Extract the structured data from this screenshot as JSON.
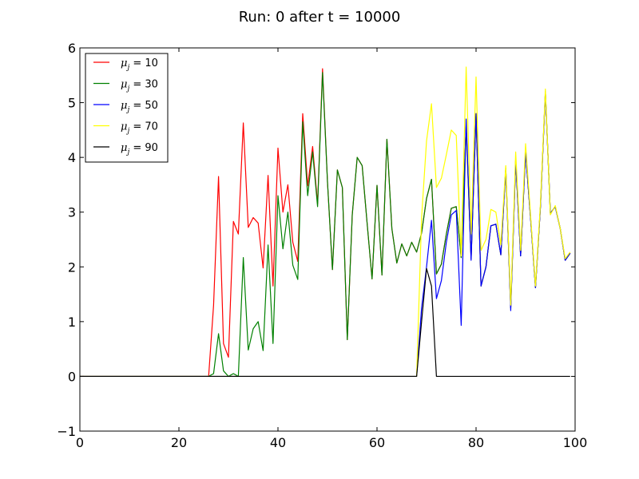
{
  "chart_data": {
    "type": "line",
    "title": "Run: 0 after t = 10000",
    "xlabel": "",
    "ylabel": "",
    "xlim": [
      0,
      100
    ],
    "ylim": [
      -1,
      6
    ],
    "xticks": [
      "0",
      "20",
      "40",
      "60",
      "80",
      "100"
    ],
    "yticks": [
      "−1",
      "0",
      "1",
      "2",
      "3",
      "4",
      "5",
      "6"
    ],
    "legend_placement": "top-left",
    "grid": false,
    "series": [
      {
        "name": "μ_j = 10",
        "legend_label": "μ",
        "legend_sub": "j",
        "legend_value": " = 10",
        "color": "#ff0000",
        "x": [
          0,
          1,
          2,
          3,
          4,
          5,
          6,
          7,
          8,
          9,
          10,
          11,
          12,
          13,
          14,
          15,
          16,
          17,
          18,
          19,
          20,
          21,
          22,
          23,
          24,
          25,
          26,
          27,
          28,
          29,
          30,
          31,
          32,
          33,
          34,
          35,
          36,
          37,
          38,
          39,
          40,
          41,
          42,
          43,
          44,
          45,
          46,
          47,
          48,
          49,
          50,
          51,
          52,
          53,
          54,
          55,
          56,
          57,
          58,
          59,
          60,
          61,
          62,
          63,
          64,
          65,
          66,
          67,
          68,
          69,
          70,
          71,
          72,
          73,
          74,
          75,
          76,
          77,
          78,
          79,
          80,
          81,
          82,
          83,
          84,
          85,
          86,
          87,
          88,
          89,
          90,
          91,
          92,
          93,
          94,
          95,
          96,
          97,
          98,
          99
        ],
        "y": [
          0,
          0,
          0,
          0,
          0,
          0,
          0,
          0,
          0,
          0,
          0,
          0,
          0,
          0,
          0,
          0,
          0,
          0,
          0,
          0,
          0,
          0,
          0,
          0,
          0,
          0,
          0,
          1.3,
          3.65,
          0.6,
          0.35,
          2.83,
          2.6,
          4.63,
          2.72,
          2.9,
          2.8,
          1.98,
          3.67,
          1.65,
          4.17,
          3.0,
          3.5,
          2.45,
          2.1,
          4.8,
          3.48,
          4.2,
          3.15,
          5.62,
          3.55,
          1.95,
          3.77,
          3.45,
          0.67,
          2.95,
          4.0,
          3.85,
          2.8,
          1.78,
          3.49,
          1.85,
          4.33,
          2.7,
          2.07,
          2.42,
          2.2,
          2.45,
          2.27,
          2.62,
          3.25,
          3.6,
          1.87,
          2.05,
          2.6,
          3.07,
          3.1,
          2.17,
          4.58,
          2.15,
          4.8,
          1.65,
          2.0,
          2.75,
          2.78,
          2.22,
          3.8,
          1.25,
          3.95,
          2.2,
          4.1,
          2.9,
          1.62,
          3.1,
          5.2,
          2.98,
          3.1,
          2.7,
          2.12,
          2.25
        ]
      },
      {
        "name": "μ_j = 30",
        "legend_label": "μ",
        "legend_sub": "j",
        "legend_value": " = 30",
        "color": "#008000",
        "x": [
          0,
          1,
          2,
          3,
          4,
          5,
          6,
          7,
          8,
          9,
          10,
          11,
          12,
          13,
          14,
          15,
          16,
          17,
          18,
          19,
          20,
          21,
          22,
          23,
          24,
          25,
          26,
          27,
          28,
          29,
          30,
          31,
          32,
          33,
          34,
          35,
          36,
          37,
          38,
          39,
          40,
          41,
          42,
          43,
          44,
          45,
          46,
          47,
          48,
          49,
          50,
          51,
          52,
          53,
          54,
          55,
          56,
          57,
          58,
          59,
          60,
          61,
          62,
          63,
          64,
          65,
          66,
          67,
          68,
          69,
          70,
          71,
          72,
          73,
          74,
          75,
          76,
          77,
          78,
          79,
          80,
          81,
          82,
          83,
          84,
          85,
          86,
          87,
          88,
          89,
          90,
          91,
          92,
          93,
          94,
          95,
          96,
          97,
          98,
          99
        ],
        "y": [
          0,
          0,
          0,
          0,
          0,
          0,
          0,
          0,
          0,
          0,
          0,
          0,
          0,
          0,
          0,
          0,
          0,
          0,
          0,
          0,
          0,
          0,
          0,
          0,
          0,
          0,
          0,
          0.05,
          0.78,
          0.1,
          0,
          0.05,
          0,
          2.17,
          0.48,
          0.87,
          1.0,
          0.47,
          2.4,
          0.6,
          3.3,
          2.33,
          3.0,
          2.03,
          1.77,
          4.65,
          3.3,
          4.1,
          3.1,
          5.55,
          3.55,
          1.95,
          3.77,
          3.45,
          0.67,
          2.95,
          4.0,
          3.85,
          2.8,
          1.78,
          3.49,
          1.85,
          4.33,
          2.7,
          2.07,
          2.42,
          2.2,
          2.45,
          2.27,
          2.62,
          3.25,
          3.6,
          1.87,
          2.05,
          2.6,
          3.07,
          3.1,
          2.17,
          4.58,
          2.15,
          4.8,
          1.65,
          2.0,
          2.75,
          2.78,
          2.22,
          3.8,
          1.25,
          3.95,
          2.2,
          4.1,
          2.9,
          1.62,
          3.1,
          5.2,
          2.98,
          3.1,
          2.7,
          2.12,
          2.25
        ]
      },
      {
        "name": "μ_j = 50",
        "legend_label": "μ",
        "legend_sub": "j",
        "legend_value": " = 50",
        "color": "#0000ff",
        "x": [
          0,
          1,
          2,
          3,
          4,
          5,
          6,
          7,
          8,
          9,
          10,
          11,
          12,
          13,
          14,
          15,
          16,
          17,
          18,
          19,
          20,
          21,
          22,
          23,
          24,
          25,
          26,
          27,
          28,
          29,
          30,
          31,
          32,
          33,
          34,
          35,
          36,
          37,
          38,
          39,
          40,
          41,
          42,
          43,
          44,
          45,
          46,
          47,
          48,
          49,
          50,
          51,
          52,
          53,
          54,
          55,
          56,
          57,
          58,
          59,
          60,
          61,
          62,
          63,
          64,
          65,
          66,
          67,
          68,
          69,
          70,
          71,
          72,
          73,
          74,
          75,
          76,
          77,
          78,
          79,
          80,
          81,
          82,
          83,
          84,
          85,
          86,
          87,
          88,
          89,
          90,
          91,
          92,
          93,
          94,
          95,
          96,
          97,
          98,
          99
        ],
        "y": [
          0,
          0,
          0,
          0,
          0,
          0,
          0,
          0,
          0,
          0,
          0,
          0,
          0,
          0,
          0,
          0,
          0,
          0,
          0,
          0,
          0,
          0,
          0,
          0,
          0,
          0,
          0,
          0,
          0,
          0,
          0,
          0,
          0,
          0,
          0,
          0,
          0,
          0,
          0,
          0,
          0,
          0,
          0,
          0,
          0,
          0,
          0,
          0,
          0,
          0,
          0,
          0,
          0,
          0,
          0,
          0,
          0,
          0,
          0,
          0,
          0,
          0,
          0,
          0,
          0,
          0,
          0,
          0,
          0,
          1.25,
          2.0,
          2.85,
          1.42,
          1.75,
          2.45,
          2.95,
          3.03,
          0.93,
          4.7,
          2.12,
          4.8,
          1.65,
          2.0,
          2.75,
          2.78,
          2.22,
          3.8,
          1.2,
          3.95,
          2.2,
          4.1,
          2.9,
          1.62,
          3.1,
          5.2,
          2.98,
          3.1,
          2.7,
          2.12,
          2.25
        ]
      },
      {
        "name": "μ_j = 70",
        "legend_label": "μ",
        "legend_sub": "j",
        "legend_value": " = 70",
        "color": "#ffff00",
        "x": [
          0,
          1,
          2,
          3,
          4,
          5,
          6,
          7,
          8,
          9,
          10,
          11,
          12,
          13,
          14,
          15,
          16,
          17,
          18,
          19,
          20,
          21,
          22,
          23,
          24,
          25,
          26,
          27,
          28,
          29,
          30,
          31,
          32,
          33,
          34,
          35,
          36,
          37,
          38,
          39,
          40,
          41,
          42,
          43,
          44,
          45,
          46,
          47,
          48,
          49,
          50,
          51,
          52,
          53,
          54,
          55,
          56,
          57,
          58,
          59,
          60,
          61,
          62,
          63,
          64,
          65,
          66,
          67,
          68,
          69,
          70,
          71,
          72,
          73,
          74,
          75,
          76,
          77,
          78,
          79,
          80,
          81,
          82,
          83,
          84,
          85,
          86,
          87,
          88,
          89,
          90,
          91,
          92,
          93,
          94,
          95,
          96,
          97,
          98,
          99
        ],
        "y": [
          0,
          0,
          0,
          0,
          0,
          0,
          0,
          0,
          0,
          0,
          0,
          0,
          0,
          0,
          0,
          0,
          0,
          0,
          0,
          0,
          0,
          0,
          0,
          0,
          0,
          0,
          0,
          0,
          0,
          0,
          0,
          0,
          0,
          0,
          0,
          0,
          0,
          0,
          0,
          0,
          0,
          0,
          0,
          0,
          0,
          0,
          0,
          0,
          0,
          0,
          0,
          0,
          0,
          0,
          0,
          0,
          0,
          0,
          0,
          0,
          0,
          0,
          0,
          0,
          0,
          0,
          0,
          0,
          0,
          2.9,
          4.3,
          4.98,
          3.45,
          3.62,
          4.05,
          4.5,
          4.4,
          2.2,
          5.65,
          2.6,
          5.47,
          2.3,
          2.5,
          3.05,
          3.0,
          2.4,
          3.85,
          1.3,
          4.1,
          2.3,
          4.25,
          2.95,
          1.65,
          3.15,
          5.25,
          2.95,
          3.12,
          2.7,
          2.15,
          2.27
        ]
      },
      {
        "name": "μ_j = 90",
        "legend_label": "μ",
        "legend_sub": "j",
        "legend_value": " = 90",
        "color": "#000000",
        "x": [
          0,
          1,
          2,
          3,
          4,
          5,
          6,
          7,
          8,
          9,
          10,
          11,
          12,
          13,
          14,
          15,
          16,
          17,
          18,
          19,
          20,
          21,
          22,
          23,
          24,
          25,
          26,
          27,
          28,
          29,
          30,
          31,
          32,
          33,
          34,
          35,
          36,
          37,
          38,
          39,
          40,
          41,
          42,
          43,
          44,
          45,
          46,
          47,
          48,
          49,
          50,
          51,
          52,
          53,
          54,
          55,
          56,
          57,
          58,
          59,
          60,
          61,
          62,
          63,
          64,
          65,
          66,
          67,
          68,
          69,
          70,
          71,
          72,
          73,
          74,
          75,
          76,
          77,
          78,
          79,
          80,
          81,
          82,
          83,
          84,
          85,
          86,
          87,
          88,
          89,
          90,
          91,
          92,
          93,
          94,
          95,
          96,
          97,
          98,
          99
        ],
        "y": [
          0,
          0,
          0,
          0,
          0,
          0,
          0,
          0,
          0,
          0,
          0,
          0,
          0,
          0,
          0,
          0,
          0,
          0,
          0,
          0,
          0,
          0,
          0,
          0,
          0,
          0,
          0,
          0,
          0,
          0,
          0,
          0,
          0,
          0,
          0,
          0,
          0,
          0,
          0,
          0,
          0,
          0,
          0,
          0,
          0,
          0,
          0,
          0,
          0,
          0,
          0,
          0,
          0,
          0,
          0,
          0,
          0,
          0,
          0,
          0,
          0,
          0,
          0,
          0,
          0,
          0,
          0,
          0,
          0,
          1.0,
          1.97,
          1.65,
          0,
          0,
          0,
          0,
          0,
          0,
          0,
          0,
          0,
          0,
          0,
          0,
          0,
          0,
          0,
          0,
          0,
          0,
          0,
          0,
          0,
          0,
          0,
          0,
          0,
          0,
          0,
          0
        ]
      }
    ]
  }
}
